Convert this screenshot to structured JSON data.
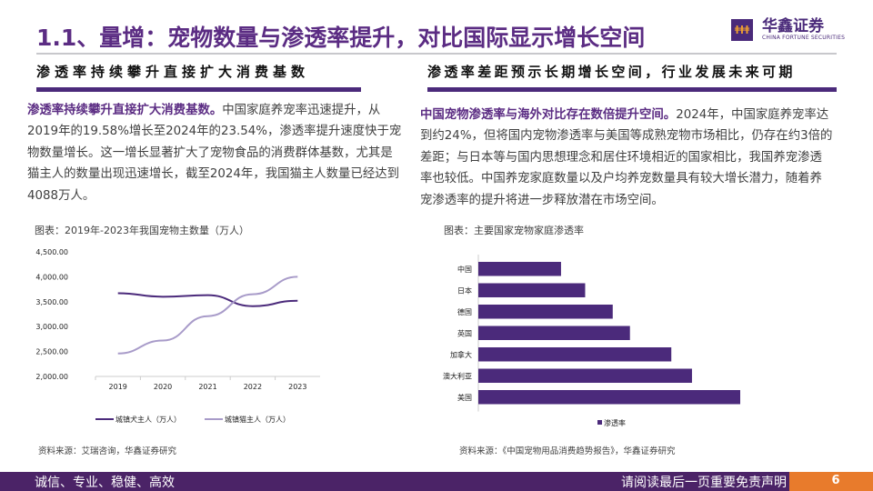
{
  "header": {
    "title": "1.1、量增：宠物数量与渗透率提升，对比国际显示增长空间",
    "logo_cn": "华鑫证券",
    "logo_en": "CHINA FORTUNE SECURITIES"
  },
  "left": {
    "heading": "渗透率持续攀升直接扩大消费基数",
    "lead": "渗透率持续攀升直接扩大消费基数。",
    "text": "中国家庭养宠率迅速提升，从2019年的19.58%增长至2024年的23.54%，渗透率提升速度快于宠物数量增长。这一增长显著扩大了宠物食品的消费群体基数，尤其是猫主人的数量出现迅速增长，截至2024年，我国猫主人数量已经达到4088万人。",
    "caption": "图表：2019年-2023年我国宠物主数量（万人）",
    "source": "资料来源：艾瑞咨询，华鑫证券研究"
  },
  "right": {
    "heading": "渗透率差距预示长期增长空间，行业发展未来可期",
    "lead": "中国宠物渗透率与海外对比存在数倍提升空间。",
    "text": "2024年，中国家庭养宠率达到约24%，但将国内宠物渗透率与美国等成熟宠物市场相比，仍存在约3倍的差距；与日本等与国内思想理念和居住环境相近的国家相比，我国养宠渗透率也较低。中国养宠家庭数量以及户均养宠数量具有较大增长潜力，随着养宠渗透率的提升将进一步释放潜在市场空间。",
    "caption": "图表：主要国家宠物家庭渗透率",
    "source": "资料来源：《中国宠物用品消费趋势报告》，华鑫证券研究"
  },
  "chart_data": [
    {
      "type": "line",
      "title": "",
      "categories": [
        "2019",
        "2020",
        "2021",
        "2022",
        "2023"
      ],
      "ylim": [
        2000,
        4500
      ],
      "yticks": [
        "2,000.00",
        "2,500.00",
        "3,000.00",
        "3,500.00",
        "4,000.00",
        "4,500.00"
      ],
      "legend": "bottom",
      "series": [
        {
          "name": "城镇犬主人（万人）",
          "values": [
            3670,
            3600,
            3630,
            3410,
            3520
          ],
          "color": "#4b2a7b"
        },
        {
          "name": "城镇猫主人（万人）",
          "values": [
            2460,
            2720,
            3210,
            3650,
            4000
          ],
          "color": "#a89bc9"
        }
      ]
    },
    {
      "type": "bar",
      "orientation": "horizontal",
      "categories": [
        "中国",
        "日本",
        "德国",
        "英国",
        "加拿大",
        "澳大利亚",
        "美国"
      ],
      "series": [
        {
          "name": "渗透率",
          "values": [
            24,
            31,
            39,
            44,
            56,
            62,
            76
          ],
          "color": "#4b2a7b"
        }
      ],
      "legend": "bottom"
    }
  ],
  "footer": {
    "motto": "诚信、专业、稳健、高效",
    "disclaimer": "请阅读最后一页重要免责声明",
    "page": "6"
  }
}
